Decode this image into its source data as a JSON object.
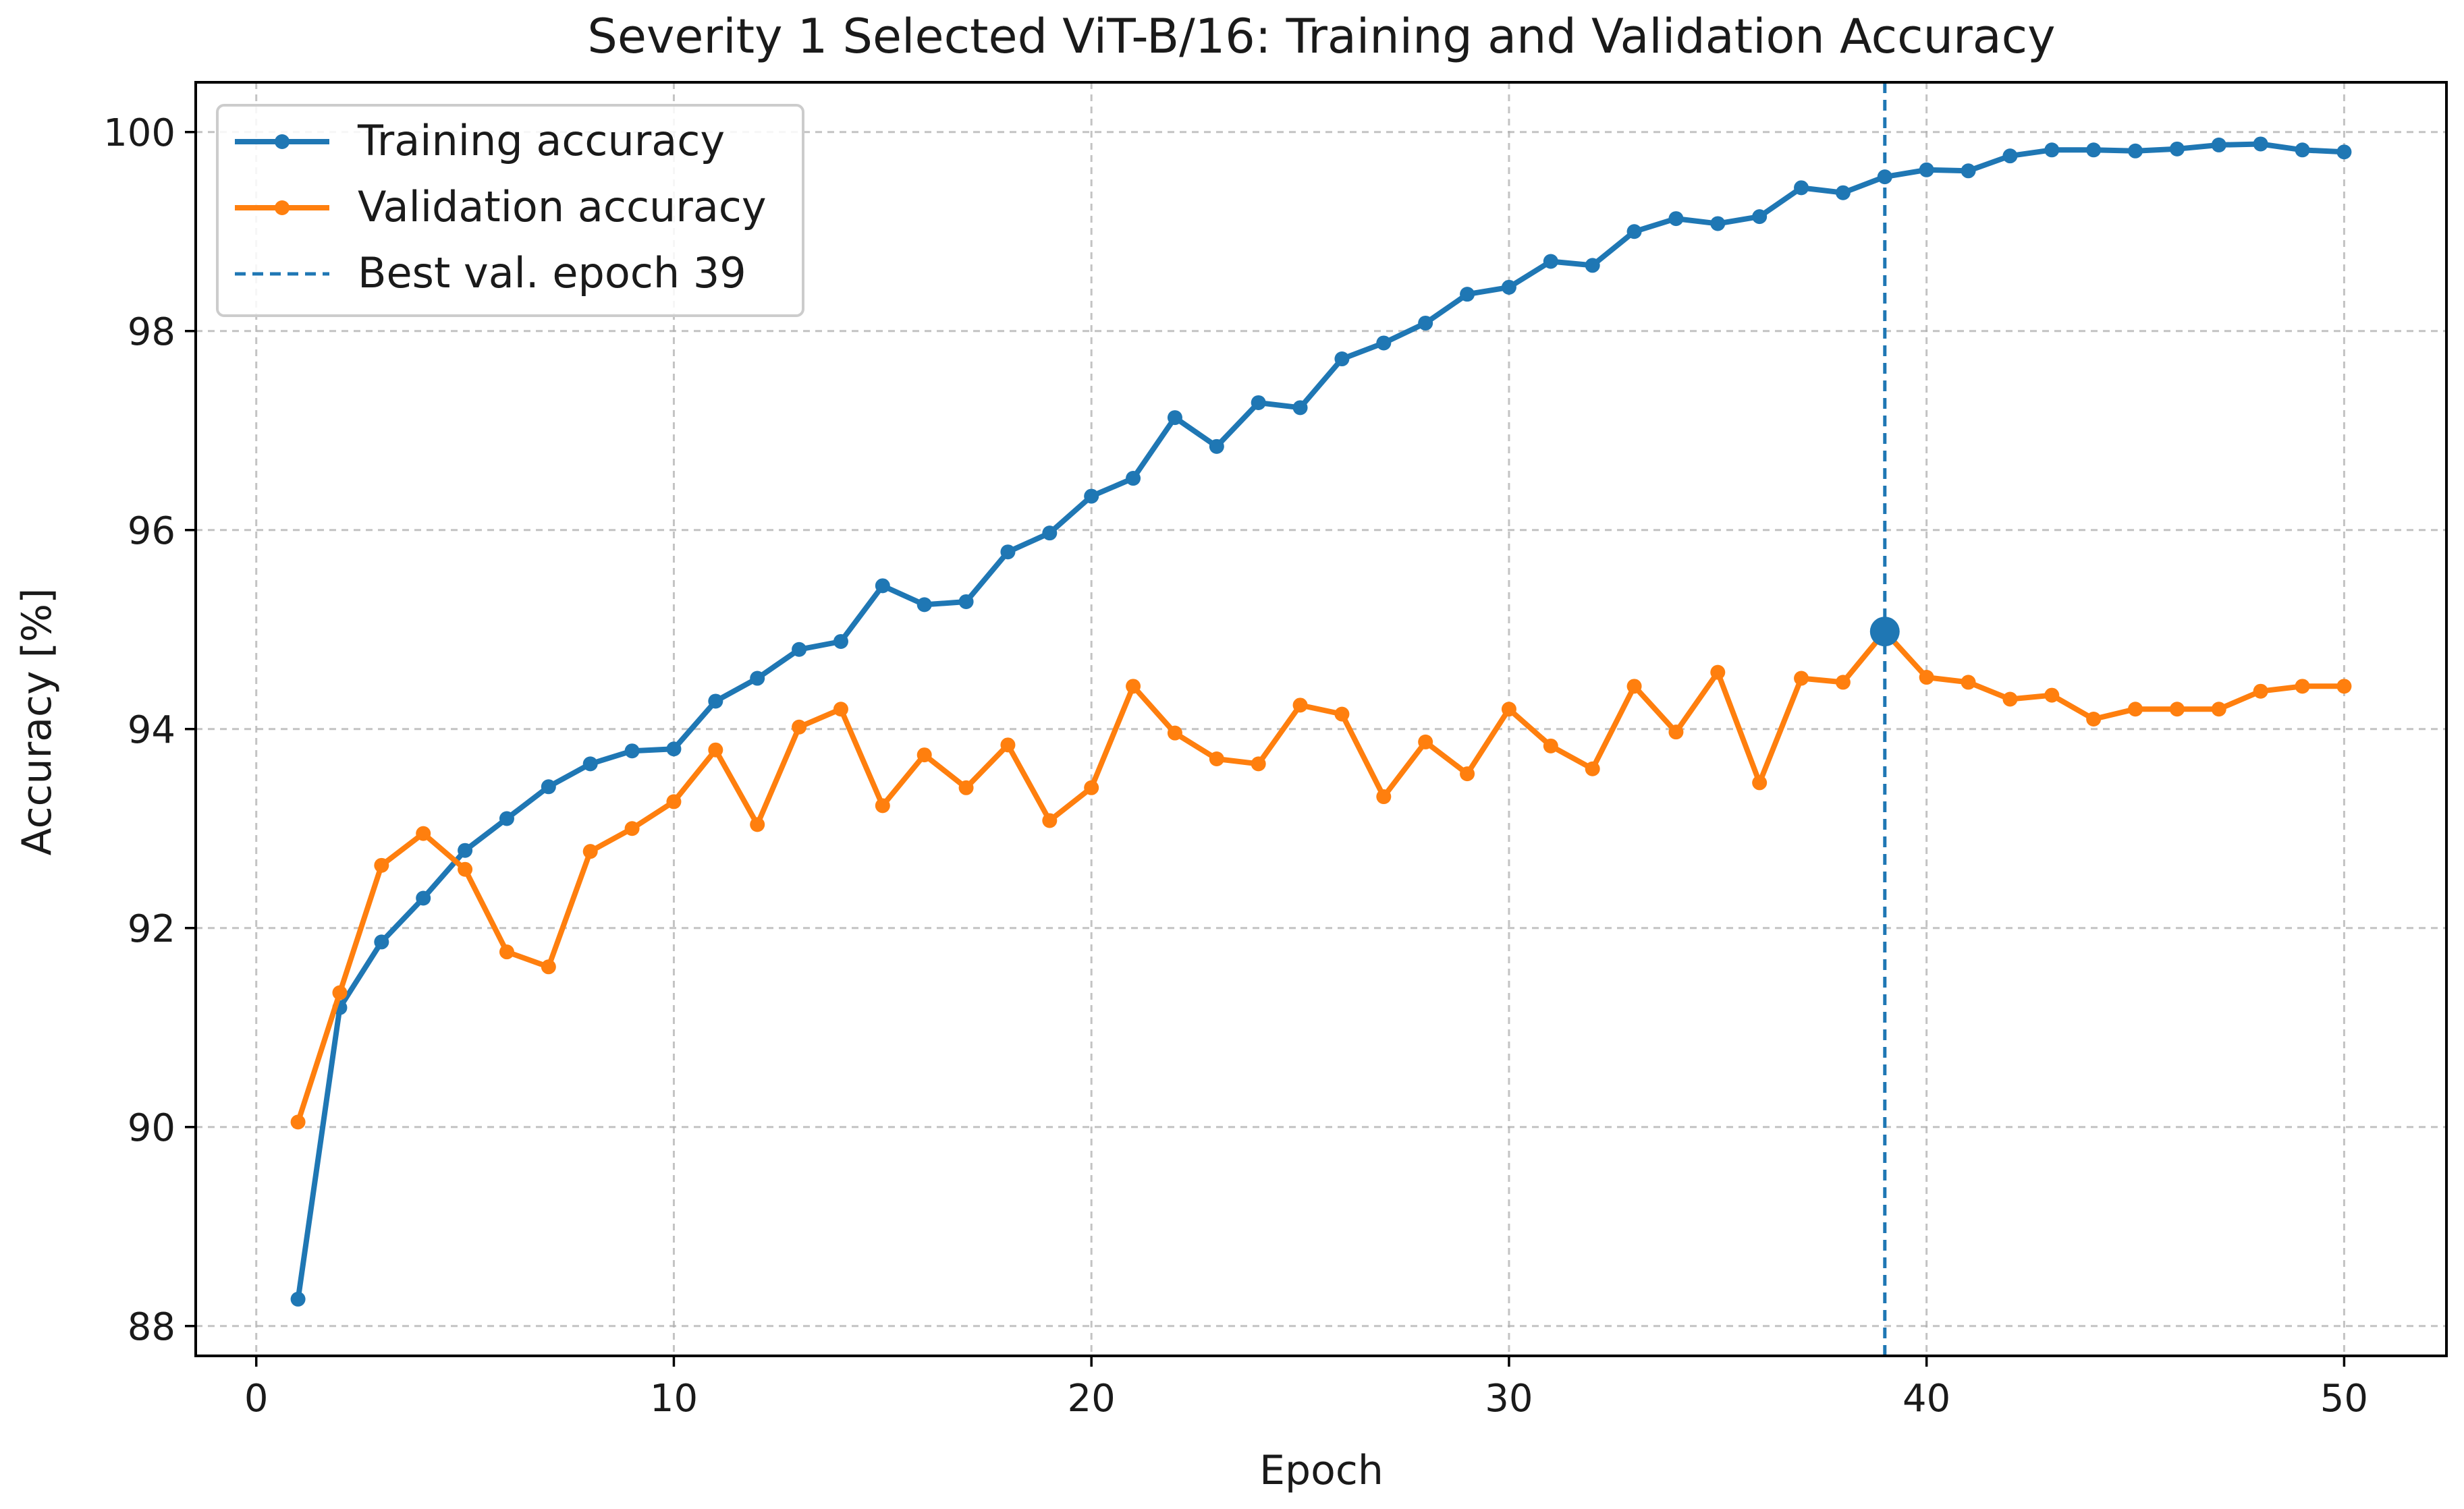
{
  "chart_data": {
    "type": "line",
    "title": "Severity 1 Selected ViT-B/16: Training and Validation Accuracy",
    "xlabel": "Epoch",
    "ylabel": "Accuracy [%]",
    "xlim": [
      -1.45,
      52.45
    ],
    "ylim": [
      87.7,
      100.5
    ],
    "xticks": [
      0,
      10,
      20,
      30,
      40,
      50
    ],
    "yticks": [
      88,
      90,
      92,
      94,
      96,
      98,
      100
    ],
    "grid": true,
    "legend_position": "top-left",
    "x": [
      1,
      2,
      3,
      4,
      5,
      6,
      7,
      8,
      9,
      10,
      11,
      12,
      13,
      14,
      15,
      16,
      17,
      18,
      19,
      20,
      21,
      22,
      23,
      24,
      25,
      26,
      27,
      28,
      29,
      30,
      31,
      32,
      33,
      34,
      35,
      36,
      37,
      38,
      39,
      40,
      41,
      42,
      43,
      44,
      45,
      46,
      47,
      48,
      49,
      50
    ],
    "series": [
      {
        "name": "Training accuracy",
        "color": "#1f77b4",
        "values": [
          88.27,
          91.2,
          91.86,
          92.3,
          92.78,
          93.1,
          93.42,
          93.65,
          93.78,
          93.8,
          94.28,
          94.51,
          94.8,
          94.88,
          95.44,
          95.25,
          95.28,
          95.78,
          95.97,
          96.34,
          96.52,
          97.13,
          96.84,
          97.28,
          97.23,
          97.72,
          97.88,
          98.08,
          98.37,
          98.44,
          98.7,
          98.66,
          99.0,
          99.13,
          99.08,
          99.15,
          99.44,
          99.39,
          99.55,
          99.62,
          99.61,
          99.76,
          99.82,
          99.82,
          99.81,
          99.83,
          99.87,
          99.88,
          99.82,
          99.8
        ]
      },
      {
        "name": "Validation accuracy",
        "color": "#ff7f0e",
        "values": [
          90.05,
          91.35,
          92.63,
          92.95,
          92.59,
          91.76,
          91.61,
          92.77,
          93.0,
          93.27,
          93.79,
          93.04,
          94.02,
          94.2,
          93.23,
          93.74,
          93.41,
          93.84,
          93.08,
          93.41,
          94.43,
          93.96,
          93.7,
          93.65,
          94.24,
          94.15,
          93.32,
          93.87,
          93.55,
          94.2,
          93.83,
          93.6,
          94.43,
          93.97,
          94.57,
          93.46,
          94.51,
          94.47,
          94.98,
          94.52,
          94.47,
          94.3,
          94.34,
          94.1,
          94.2,
          94.2,
          94.2,
          94.38,
          94.43,
          94.43
        ]
      }
    ],
    "best_epoch": {
      "label": "Best val. epoch 39",
      "epoch": 39,
      "value": 94.98,
      "color": "#1f77b4"
    },
    "tick_labels_x": [
      "0",
      "10",
      "20",
      "30",
      "40",
      "50"
    ],
    "tick_labels_y": [
      "88",
      "90",
      "92",
      "94",
      "96",
      "98",
      "100"
    ]
  }
}
